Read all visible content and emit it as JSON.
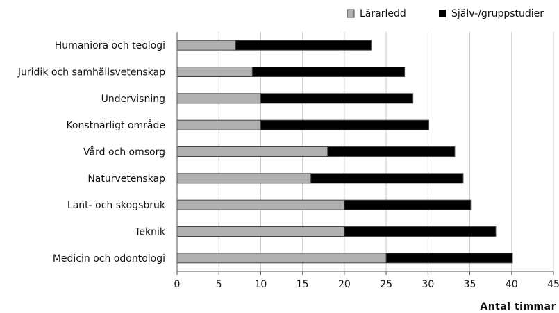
{
  "chart_data": {
    "type": "bar",
    "orientation": "horizontal",
    "stacked": true,
    "categories": [
      "Humaniora och teologi",
      "Juridik och samhällsvetenskap",
      "Undervisning",
      "Konstnärligt område",
      "Vård och omsorg",
      "Naturvetenskap",
      "Lant- och skogsbruk",
      "Teknik",
      "Medicin och odontologi"
    ],
    "series": [
      {
        "name": "Lärarledd",
        "color": "#b0b0b0",
        "values": [
          7,
          9,
          10,
          10,
          18,
          16,
          20,
          20,
          25
        ]
      },
      {
        "name": "Själv-/gruppstudier",
        "color": "#000000",
        "values": [
          16.2,
          18.2,
          18.2,
          20.1,
          15.2,
          18.2,
          15.1,
          18.1,
          15.1
        ]
      }
    ],
    "xlabel": "Antal timmar",
    "ylabel": "",
    "xlim": [
      0,
      45
    ],
    "xticks": [
      "0",
      "5",
      "10",
      "15",
      "20",
      "25",
      "30",
      "35",
      "40",
      "45"
    ],
    "grid": "vertical",
    "legend_position": "top-right"
  }
}
